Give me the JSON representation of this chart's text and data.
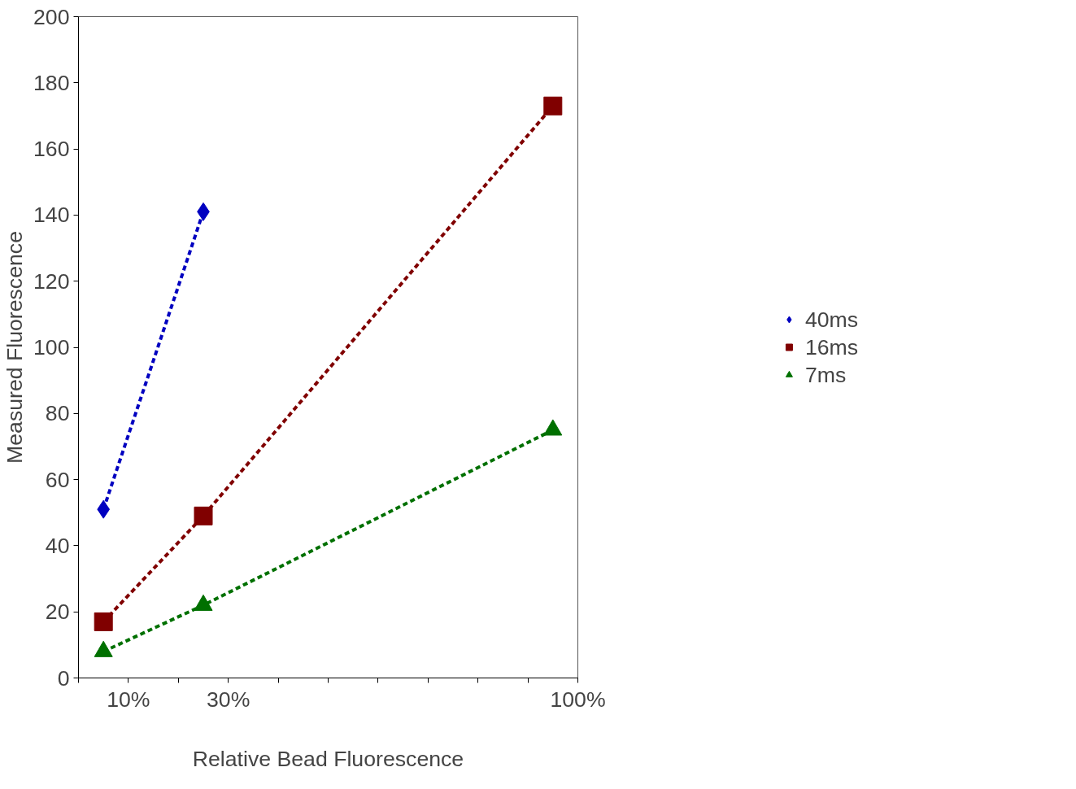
{
  "chart_data": {
    "type": "line",
    "xlabel": "Relative Bead Fluorescence",
    "ylabel": "Measured Fluorescence",
    "xlim": [
      0,
      100
    ],
    "ylim": [
      0,
      200
    ],
    "xticks": [
      {
        "value": 0,
        "label": null
      },
      {
        "value": 10,
        "label": "10%"
      },
      {
        "value": 20,
        "label": null
      },
      {
        "value": 30,
        "label": "30%"
      },
      {
        "value": 40,
        "label": null
      },
      {
        "value": 50,
        "label": null
      },
      {
        "value": 60,
        "label": null
      },
      {
        "value": 70,
        "label": null
      },
      {
        "value": 80,
        "label": null
      },
      {
        "value": 90,
        "label": null
      },
      {
        "value": 100,
        "label": "100%"
      }
    ],
    "yticks": [
      0,
      20,
      40,
      60,
      80,
      100,
      120,
      140,
      160,
      180,
      200
    ],
    "grid": false,
    "legend": "right",
    "line_style": "dashed",
    "series": [
      {
        "name": "40ms",
        "color": "#0000c0",
        "marker": "diamond",
        "x": [
          5,
          25
        ],
        "values": [
          51,
          141
        ]
      },
      {
        "name": "16ms",
        "color": "#800000",
        "marker": "square",
        "x": [
          5,
          25,
          95
        ],
        "values": [
          17,
          49,
          173
        ]
      },
      {
        "name": "7ms",
        "color": "#007000",
        "marker": "triangle",
        "x": [
          5,
          25,
          95
        ],
        "values": [
          8,
          22,
          75
        ]
      }
    ]
  }
}
